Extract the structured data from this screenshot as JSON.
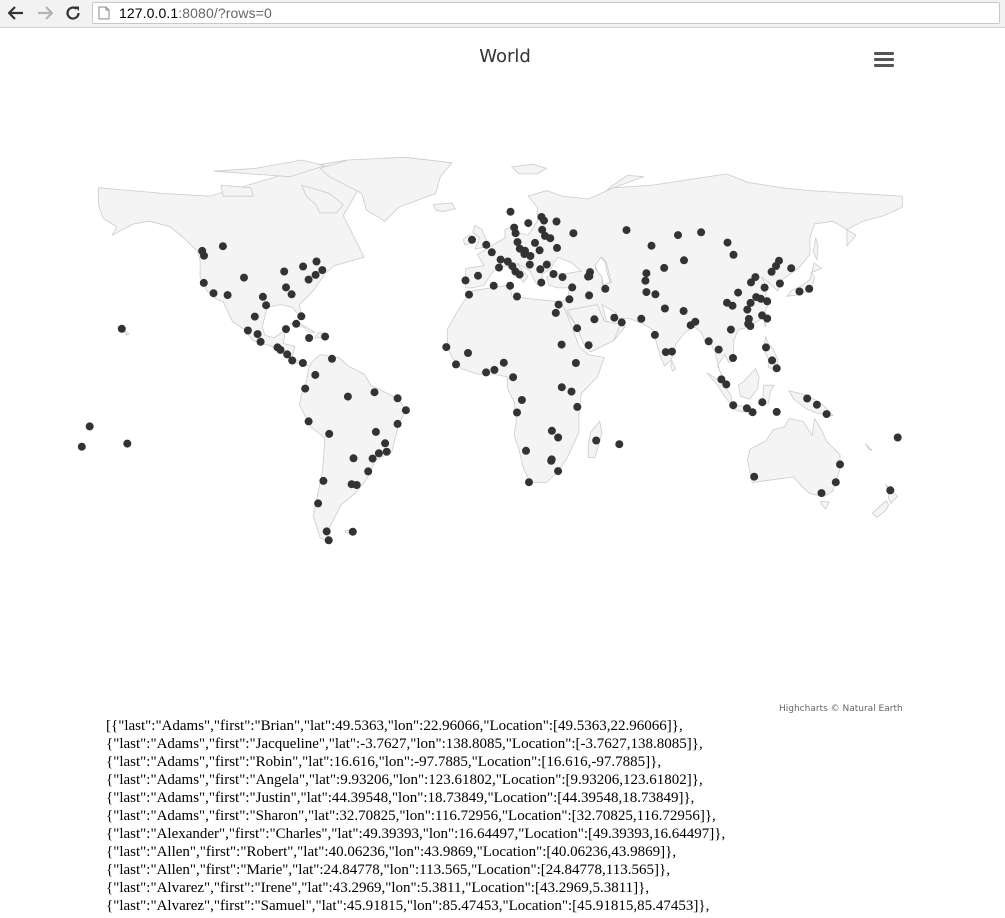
{
  "browser": {
    "url_host": "127.0.0.1",
    "url_rest": ":8080/?rows=0"
  },
  "chart_data": {
    "type": "scatter",
    "title": "World",
    "credits": "Highcharts © Natural Earth",
    "point_color": "#333333",
    "land_color": "#f4f4f4",
    "border_color": "#cccccc",
    "points": [
      {
        "lat": 49.5363,
        "lon": 22.96066
      },
      {
        "lat": -3.7627,
        "lon": 138.8085
      },
      {
        "lat": 16.616,
        "lon": -97.7885
      },
      {
        "lat": 9.93206,
        "lon": 123.61802
      },
      {
        "lat": 44.39548,
        "lon": 18.73849
      },
      {
        "lat": 32.70825,
        "lon": 116.72956
      },
      {
        "lat": 49.39393,
        "lon": 16.64497
      },
      {
        "lat": 40.06236,
        "lon": 43.9869
      },
      {
        "lat": 24.84778,
        "lon": 113.565
      },
      {
        "lat": 43.2969,
        "lon": 5.3811
      },
      {
        "lat": 45.91815,
        "lon": 85.47453
      },
      {
        "lat": 52.5,
        "lon": 13.4
      },
      {
        "lat": 48.8,
        "lon": 2.3
      },
      {
        "lat": 51.5,
        "lon": -0.1
      },
      {
        "lat": 41.9,
        "lon": 12.5
      },
      {
        "lat": 40.4,
        "lon": -3.7
      },
      {
        "lat": 52.2,
        "lon": 21.0
      },
      {
        "lat": 50.1,
        "lon": 14.4
      },
      {
        "lat": 47.5,
        "lon": 19.0
      },
      {
        "lat": 44.4,
        "lon": 26.1
      },
      {
        "lat": 42.7,
        "lon": 23.3
      },
      {
        "lat": 55.7,
        "lon": 37.6
      },
      {
        "lat": 59.9,
        "lon": 30.3
      },
      {
        "lat": 60.2,
        "lon": 24.9
      },
      {
        "lat": 59.3,
        "lon": 18.1
      },
      {
        "lat": 55.7,
        "lon": 12.6
      },
      {
        "lat": 53.3,
        "lon": -6.3
      },
      {
        "lat": 38.7,
        "lon": -9.1
      },
      {
        "lat": 41.0,
        "lon": 29.0
      },
      {
        "lat": 39.9,
        "lon": 32.9
      },
      {
        "lat": 50.4,
        "lon": 30.5
      },
      {
        "lat": 53.9,
        "lon": 27.6
      },
      {
        "lat": 54.7,
        "lon": 25.3
      },
      {
        "lat": 56.9,
        "lon": 24.1
      },
      {
        "lat": 48.2,
        "lon": 16.4
      },
      {
        "lat": 46.2,
        "lon": 6.1
      },
      {
        "lat": 45.5,
        "lon": 9.2
      },
      {
        "lat": 43.8,
        "lon": 11.2
      },
      {
        "lat": 40.8,
        "lon": 14.3
      },
      {
        "lat": 37.9,
        "lon": 23.7
      },
      {
        "lat": 35.7,
        "lon": 51.4
      },
      {
        "lat": 33.3,
        "lon": 44.4
      },
      {
        "lat": 31.9,
        "lon": 35.9
      },
      {
        "lat": 30.0,
        "lon": 31.2
      },
      {
        "lat": 24.7,
        "lon": 46.7
      },
      {
        "lat": 25.3,
        "lon": 55.3
      },
      {
        "lat": 36.2,
        "lon": 37.1
      },
      {
        "lat": 41.7,
        "lon": 44.8
      },
      {
        "lat": 40.2,
        "lon": 44.5
      },
      {
        "lat": 51.2,
        "lon": 71.4
      },
      {
        "lat": 43.2,
        "lon": 76.9
      },
      {
        "lat": 41.3,
        "lon": 69.2
      },
      {
        "lat": 38.6,
        "lon": 68.8
      },
      {
        "lat": 34.5,
        "lon": 69.2
      },
      {
        "lat": 33.7,
        "lon": 73.1
      },
      {
        "lat": 24.9,
        "lon": 67.0
      },
      {
        "lat": 28.6,
        "lon": 77.2
      },
      {
        "lat": 19.1,
        "lon": 72.9
      },
      {
        "lat": 13.1,
        "lon": 80.3
      },
      {
        "lat": 22.6,
        "lon": 88.4
      },
      {
        "lat": 12.9,
        "lon": 77.6
      },
      {
        "lat": 23.8,
        "lon": 90.4
      },
      {
        "lat": 27.7,
        "lon": 85.3
      },
      {
        "lat": 39.9,
        "lon": 116.4
      },
      {
        "lat": 31.2,
        "lon": 121.5
      },
      {
        "lat": 23.1,
        "lon": 113.3
      },
      {
        "lat": 30.6,
        "lon": 114.3
      },
      {
        "lat": 30.7,
        "lon": 104.1
      },
      {
        "lat": 34.3,
        "lon": 108.9
      },
      {
        "lat": 36.1,
        "lon": 120.4
      },
      {
        "lat": 38.0,
        "lon": 114.5
      },
      {
        "lat": 29.6,
        "lon": 106.5
      },
      {
        "lat": 26.1,
        "lon": 119.3
      },
      {
        "lat": 28.2,
        "lon": 112.9
      },
      {
        "lat": 32.1,
        "lon": 118.8
      },
      {
        "lat": 45.8,
        "lon": 126.6
      },
      {
        "lat": 41.8,
        "lon": 123.4
      },
      {
        "lat": 43.9,
        "lon": 125.3
      },
      {
        "lat": 37.6,
        "lon": 127.0
      },
      {
        "lat": 35.7,
        "lon": 139.7
      },
      {
        "lat": 34.7,
        "lon": 135.5
      },
      {
        "lat": 25.0,
        "lon": 121.5
      },
      {
        "lat": 22.3,
        "lon": 114.2
      },
      {
        "lat": 21.0,
        "lon": 105.8
      },
      {
        "lat": 10.8,
        "lon": 106.7
      },
      {
        "lat": 13.8,
        "lon": 100.5
      },
      {
        "lat": 16.8,
        "lon": 96.2
      },
      {
        "lat": 3.1,
        "lon": 101.7
      },
      {
        "lat": 1.3,
        "lon": 103.8
      },
      {
        "lat": -6.2,
        "lon": 106.8
      },
      {
        "lat": -7.3,
        "lon": 112.7
      },
      {
        "lat": -8.7,
        "lon": 115.2
      },
      {
        "lat": 14.6,
        "lon": 121.0
      },
      {
        "lat": 7.1,
        "lon": 125.6
      },
      {
        "lat": -5.1,
        "lon": 119.4
      },
      {
        "lat": -8.6,
        "lon": 125.6
      },
      {
        "lat": -9.4,
        "lon": 147.2
      },
      {
        "lat": -6.0,
        "lon": 143.0
      },
      {
        "lat": -17.8,
        "lon": 178.0
      },
      {
        "lat": -13.8,
        "lon": -171.8
      },
      {
        "lat": -21.1,
        "lon": -175.2
      },
      {
        "lat": 40.7,
        "lon": -74.0
      },
      {
        "lat": 34.1,
        "lon": -118.2
      },
      {
        "lat": 41.9,
        "lon": -87.6
      },
      {
        "lat": 29.8,
        "lon": -95.4
      },
      {
        "lat": 33.7,
        "lon": -84.4
      },
      {
        "lat": 39.0,
        "lon": -77.0
      },
      {
        "lat": 42.4,
        "lon": -71.1
      },
      {
        "lat": 47.6,
        "lon": -122.3
      },
      {
        "lat": 37.8,
        "lon": -122.4
      },
      {
        "lat": 45.5,
        "lon": -73.6
      },
      {
        "lat": 43.7,
        "lon": -79.4
      },
      {
        "lat": 49.3,
        "lon": -123.1
      },
      {
        "lat": 51.0,
        "lon": -114.1
      },
      {
        "lat": 25.8,
        "lon": -80.2
      },
      {
        "lat": 32.8,
        "lon": -96.8
      },
      {
        "lat": 39.7,
        "lon": -105.0
      },
      {
        "lat": 33.4,
        "lon": -112.1
      },
      {
        "lat": 36.2,
        "lon": -86.8
      },
      {
        "lat": 19.4,
        "lon": -99.1
      },
      {
        "lat": 20.7,
        "lon": -103.3
      },
      {
        "lat": 25.7,
        "lon": -100.3
      },
      {
        "lat": 21.2,
        "lon": -86.8
      },
      {
        "lat": 14.6,
        "lon": -90.5
      },
      {
        "lat": 13.7,
        "lon": -89.2
      },
      {
        "lat": 12.1,
        "lon": -86.3
      },
      {
        "lat": 9.9,
        "lon": -84.1
      },
      {
        "lat": 9.0,
        "lon": -79.5
      },
      {
        "lat": 18.5,
        "lon": -69.9
      },
      {
        "lat": 18.0,
        "lon": -76.8
      },
      {
        "lat": 23.1,
        "lon": -82.4
      },
      {
        "lat": 10.5,
        "lon": -66.9
      },
      {
        "lat": 4.7,
        "lon": -74.1
      },
      {
        "lat": -0.2,
        "lon": -78.5
      },
      {
        "lat": -12.0,
        "lon": -77.0
      },
      {
        "lat": -16.5,
        "lon": -68.1
      },
      {
        "lat": -33.4,
        "lon": -70.6
      },
      {
        "lat": -34.6,
        "lon": -58.4
      },
      {
        "lat": -34.9,
        "lon": -56.2
      },
      {
        "lat": -25.3,
        "lon": -57.6
      },
      {
        "lat": -23.5,
        "lon": -46.6
      },
      {
        "lat": -22.9,
        "lon": -43.2
      },
      {
        "lat": -15.8,
        "lon": -47.9
      },
      {
        "lat": -12.9,
        "lon": -38.5
      },
      {
        "lat": -8.0,
        "lon": -34.9
      },
      {
        "lat": -3.7,
        "lon": -38.5
      },
      {
        "lat": -1.5,
        "lon": -48.5
      },
      {
        "lat": -3.1,
        "lon": -60.0
      },
      {
        "lat": -30.0,
        "lon": -51.2
      },
      {
        "lat": -25.4,
        "lon": -49.3
      },
      {
        "lat": -19.9,
        "lon": -43.9
      },
      {
        "lat": -41.5,
        "lon": -72.9
      },
      {
        "lat": -51.6,
        "lon": -69.2
      },
      {
        "lat": -54.8,
        "lon": -68.3
      },
      {
        "lat": -51.7,
        "lon": -57.9
      },
      {
        "lat": 6.5,
        "lon": 3.4
      },
      {
        "lat": 9.1,
        "lon": 7.5
      },
      {
        "lat": 5.6,
        "lon": -0.2
      },
      {
        "lat": 14.7,
        "lon": -17.4
      },
      {
        "lat": 12.6,
        "lon": -8.0
      },
      {
        "lat": 8.5,
        "lon": -13.2
      },
      {
        "lat": 3.9,
        "lon": 11.5
      },
      {
        "lat": -4.3,
        "lon": 15.3
      },
      {
        "lat": 0.3,
        "lon": 32.6
      },
      {
        "lat": -1.3,
        "lon": 36.8
      },
      {
        "lat": -6.8,
        "lon": 39.3
      },
      {
        "lat": 9.0,
        "lon": 38.7
      },
      {
        "lat": 15.6,
        "lon": 32.5
      },
      {
        "lat": -15.4,
        "lon": 28.3
      },
      {
        "lat": -17.8,
        "lon": 31.0
      },
      {
        "lat": -25.7,
        "lon": 28.2
      },
      {
        "lat": -26.2,
        "lon": 28.0
      },
      {
        "lat": -29.9,
        "lon": 31.0
      },
      {
        "lat": -33.9,
        "lon": 18.4
      },
      {
        "lat": -22.6,
        "lon": 17.1
      },
      {
        "lat": -8.8,
        "lon": 13.2
      },
      {
        "lat": -18.9,
        "lon": 47.5
      },
      {
        "lat": -20.2,
        "lon": 57.5
      },
      {
        "lat": 33.6,
        "lon": -7.6
      },
      {
        "lat": 36.8,
        "lon": 3.1
      },
      {
        "lat": 36.8,
        "lon": 10.2
      },
      {
        "lat": 32.9,
        "lon": 13.2
      },
      {
        "lat": 27.0,
        "lon": 30.0
      },
      {
        "lat": 21.5,
        "lon": 39.2
      },
      {
        "lat": 15.4,
        "lon": 44.2
      },
      {
        "lat": 23.6,
        "lon": 58.5
      },
      {
        "lat": 61.5,
        "lon": 23.8
      },
      {
        "lat": 63.4,
        "lon": 10.4
      },
      {
        "lat": 57.7,
        "lon": 12.0
      },
      {
        "lat": 56.0,
        "lon": 92.9
      },
      {
        "lat": 55.0,
        "lon": 82.9
      },
      {
        "lat": 56.8,
        "lon": 60.6
      },
      {
        "lat": 52.3,
        "lon": 104.3
      },
      {
        "lat": 47.9,
        "lon": 106.9
      },
      {
        "lat": 43.1,
        "lon": 131.9
      },
      {
        "lat": -33.9,
        "lon": 151.2
      },
      {
        "lat": -37.8,
        "lon": 145.0
      },
      {
        "lat": -27.5,
        "lon": 153.0
      },
      {
        "lat": -31.9,
        "lon": 115.9
      },
      {
        "lat": -36.8,
        "lon": 174.8
      },
      {
        "lat": -20.0,
        "lon": -155.5
      },
      {
        "lat": 21.3,
        "lon": -157.9
      }
    ]
  },
  "json_dump": [
    "[{\"last\":\"Adams\",\"first\":\"Brian\",\"lat\":49.5363,\"lon\":22.96066,\"Location\":[49.5363,22.96066]},",
    "{\"last\":\"Adams\",\"first\":\"Jacqueline\",\"lat\":-3.7627,\"lon\":138.8085,\"Location\":[-3.7627,138.8085]},",
    "{\"last\":\"Adams\",\"first\":\"Robin\",\"lat\":16.616,\"lon\":-97.7885,\"Location\":[16.616,-97.7885]},",
    "{\"last\":\"Adams\",\"first\":\"Angela\",\"lat\":9.93206,\"lon\":123.61802,\"Location\":[9.93206,123.61802]},",
    "{\"last\":\"Adams\",\"first\":\"Justin\",\"lat\":44.39548,\"lon\":18.73849,\"Location\":[44.39548,18.73849]},",
    "{\"last\":\"Adams\",\"first\":\"Sharon\",\"lat\":32.70825,\"lon\":116.72956,\"Location\":[32.70825,116.72956]},",
    "{\"last\":\"Alexander\",\"first\":\"Charles\",\"lat\":49.39393,\"lon\":16.64497,\"Location\":[49.39393,16.64497]},",
    "{\"last\":\"Allen\",\"first\":\"Robert\",\"lat\":40.06236,\"lon\":43.9869,\"Location\":[40.06236,43.9869]},",
    "{\"last\":\"Allen\",\"first\":\"Marie\",\"lat\":24.84778,\"lon\":113.565,\"Location\":[24.84778,113.565]},",
    "{\"last\":\"Alvarez\",\"first\":\"Irene\",\"lat\":43.2969,\"lon\":5.3811,\"Location\":[43.2969,5.3811]},",
    "{\"last\":\"Alvarez\",\"first\":\"Samuel\",\"lat\":45.91815,\"lon\":85.47453,\"Location\":[45.91815,85.47453]},"
  ]
}
